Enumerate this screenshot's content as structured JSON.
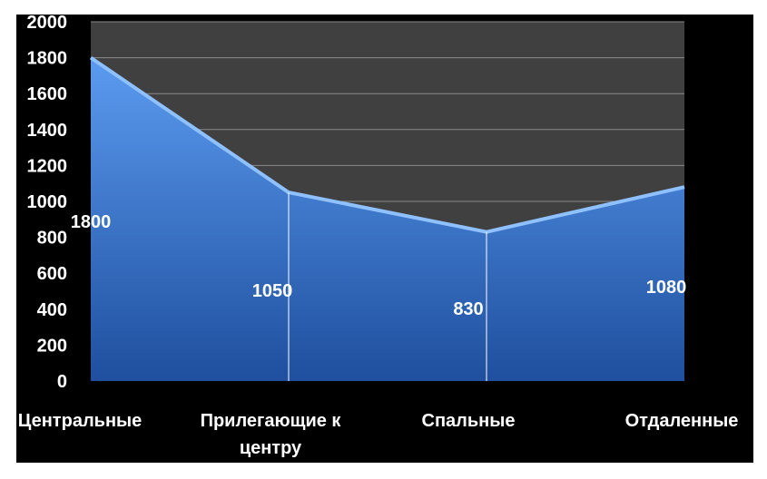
{
  "chart_data": {
    "type": "area",
    "categories": [
      "Центральные",
      "Прилегающие к центру",
      "Спальные",
      "Отдаленные"
    ],
    "values": [
      1800,
      1050,
      830,
      1080
    ],
    "data_labels": [
      "1800",
      "1050",
      "830",
      "1080"
    ],
    "y_ticks": [
      "0",
      "200",
      "400",
      "600",
      "800",
      "1000",
      "1200",
      "1400",
      "1600",
      "1800",
      "2000"
    ],
    "ylim": [
      0,
      2000
    ],
    "grid": true,
    "legend": "none",
    "title": "",
    "xlabel": "",
    "ylabel": "",
    "colors": {
      "frame_background": "#000000",
      "plot_background": "#404040",
      "gridline": "#8a8a8a",
      "area_top": "#5b9bf0",
      "area_bottom": "#1f4f9e",
      "area_edge": "#8fc0ff",
      "text": "#ffffff"
    }
  }
}
